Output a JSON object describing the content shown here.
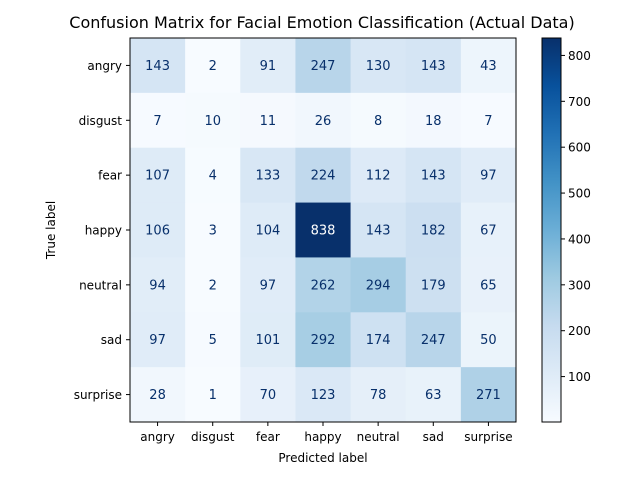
{
  "chart_data": {
    "type": "heatmap",
    "title": "Confusion Matrix for Facial Emotion Classification (Actual Data)",
    "xlabel": "Predicted label",
    "ylabel": "True label",
    "categories_x": [
      "angry",
      "disgust",
      "fear",
      "happy",
      "neutral",
      "sad",
      "surprise"
    ],
    "categories_y": [
      "angry",
      "disgust",
      "fear",
      "happy",
      "neutral",
      "sad",
      "surprise"
    ],
    "values": [
      [
        143,
        2,
        91,
        247,
        130,
        143,
        43
      ],
      [
        7,
        10,
        11,
        26,
        8,
        18,
        7
      ],
      [
        107,
        4,
        133,
        224,
        112,
        143,
        97
      ],
      [
        106,
        3,
        104,
        838,
        143,
        182,
        67
      ],
      [
        94,
        2,
        97,
        262,
        294,
        179,
        65
      ],
      [
        97,
        5,
        101,
        292,
        174,
        247,
        50
      ],
      [
        28,
        1,
        70,
        123,
        78,
        63,
        271
      ]
    ],
    "colormap": "Blues",
    "colorbar": {
      "min": 1,
      "max": 838,
      "ticks": [
        100,
        200,
        300,
        400,
        500,
        600,
        700,
        800
      ]
    },
    "grid": false
  }
}
